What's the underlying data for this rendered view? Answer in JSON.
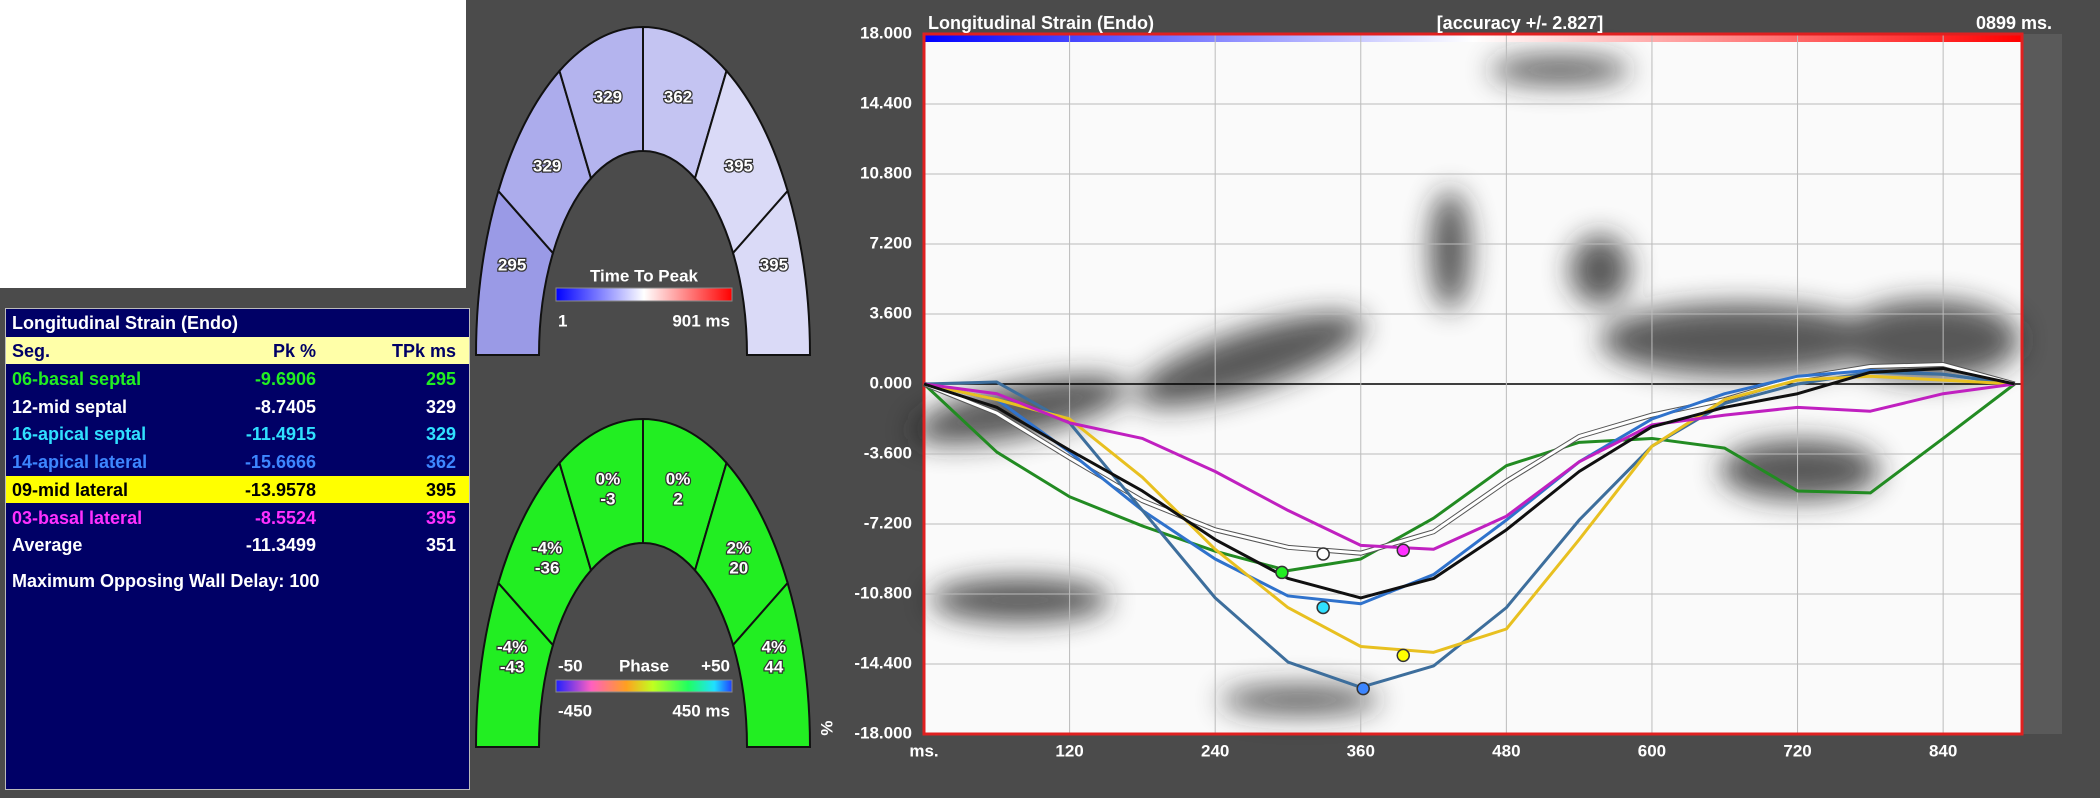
{
  "table": {
    "title": "Longitudinal Strain (Endo)",
    "headers": [
      "Seg.",
      "Pk %",
      "TPk ms"
    ],
    "rows": [
      {
        "seg": "06-basal septal",
        "pk": -9.6906,
        "tpk": 295,
        "color": "#22ee22"
      },
      {
        "seg": "12-mid septal",
        "pk": -8.7405,
        "tpk": 329,
        "color": "#ffffff"
      },
      {
        "seg": "16-apical septal",
        "pk": -11.4915,
        "tpk": 329,
        "color": "#30e0ff"
      },
      {
        "seg": "14-apical lateral",
        "pk": -15.6666,
        "tpk": 362,
        "color": "#3d86ff"
      },
      {
        "seg": "09-mid lateral",
        "pk": -13.9578,
        "tpk": 395,
        "color": "#ffff00"
      },
      {
        "seg": "03-basal lateral",
        "pk": -8.5524,
        "tpk": 395,
        "color": "#ff30ff"
      },
      {
        "seg": "Average",
        "pk": -11.3499,
        "tpk": 351,
        "color": "#ffffff"
      }
    ],
    "footer": "Maximum Opposing Wall Delay: 100"
  },
  "bullseye_ttp": {
    "segments": [
      {
        "label": 295,
        "color": "#9a9ae6"
      },
      {
        "label": 329,
        "color": "#acacec"
      },
      {
        "label": 329,
        "color": "#b4b4ee"
      },
      {
        "label": 362,
        "color": "#c4c4f2"
      },
      {
        "label": 395,
        "color": "#dadaf7"
      },
      {
        "label": 395,
        "color": "#dadaf7"
      }
    ],
    "colorbar": {
      "title": "Time To Peak",
      "min": "1",
      "max": "901 ms"
    }
  },
  "bullseye_phase": {
    "color": "#22ee22",
    "segments": [
      {
        "pct": "-4%",
        "ms": -43
      },
      {
        "pct": "-4%",
        "ms": -36
      },
      {
        "pct": "0%",
        "ms": -3
      },
      {
        "pct": "0%",
        "ms": 2
      },
      {
        "pct": "2%",
        "ms": 20
      },
      {
        "pct": "4%",
        "ms": 44
      }
    ],
    "colorbar": {
      "title": "Phase",
      "top_min": "-50",
      "top_max": "+50",
      "min": "-450",
      "max": "450 ms"
    }
  },
  "chart_data": {
    "type": "line",
    "title": "Longitudinal Strain (Endo)",
    "accuracy": "[accuracy +/- 2.827]",
    "time": "0899 ms.",
    "y_label": "%",
    "x": [
      0,
      60,
      120,
      180,
      240,
      300,
      360,
      420,
      480,
      540,
      600,
      660,
      720,
      780,
      840,
      899
    ],
    "series": [
      {
        "name": "06-basal septal",
        "color": "#228b22",
        "values": [
          0,
          -3.5,
          -5.8,
          -7.3,
          -8.6,
          -9.6,
          -9.0,
          -6.9,
          -4.2,
          -3.0,
          -2.8,
          -3.3,
          -5.5,
          -5.6,
          -2.8,
          0
        ]
      },
      {
        "name": "12-mid septal",
        "color": "#ffffff",
        "values": [
          0,
          -1.5,
          -3.8,
          -6.0,
          -7.5,
          -8.4,
          -8.7,
          -7.6,
          -5.0,
          -2.7,
          -1.6,
          -0.8,
          0.3,
          0.9,
          1.0,
          0
        ]
      },
      {
        "name": "16-apical septal",
        "color": "#2f72cc",
        "values": [
          0,
          -0.8,
          -3.5,
          -6.5,
          -9.0,
          -10.9,
          -11.3,
          -9.8,
          -7.0,
          -4.0,
          -1.8,
          -0.5,
          0.4,
          0.7,
          0.5,
          0
        ]
      },
      {
        "name": "14-apical lateral",
        "color": "#3d6e9c",
        "values": [
          0,
          0.1,
          -2.0,
          -6.5,
          -11.0,
          -14.3,
          -15.6,
          -14.5,
          -11.5,
          -7.0,
          -3.2,
          -1.0,
          0,
          0.6,
          0.5,
          0
        ]
      },
      {
        "name": "09-mid lateral",
        "color": "#e8c020",
        "values": [
          0,
          -0.8,
          -1.8,
          -4.8,
          -8.5,
          -11.5,
          -13.5,
          -13.8,
          -12.6,
          -8.0,
          -3.2,
          -0.8,
          0.2,
          0.4,
          0.2,
          0
        ]
      },
      {
        "name": "03-basal lateral",
        "color": "#c020c0",
        "values": [
          0,
          -0.5,
          -2.0,
          -2.8,
          -4.5,
          -6.5,
          -8.3,
          -8.5,
          -6.8,
          -4.0,
          -2.1,
          -1.6,
          -1.2,
          -1.4,
          -0.5,
          0
        ]
      },
      {
        "name": "Average",
        "color": "#101010",
        "values": [
          0,
          -1.2,
          -3.4,
          -5.5,
          -8.0,
          -10.0,
          -11.0,
          -10.0,
          -7.5,
          -4.5,
          -2.2,
          -1.2,
          -0.5,
          0.6,
          0.8,
          0
        ]
      }
    ],
    "xlim": [
      0,
      905
    ],
    "ylim": [
      -18,
      18
    ],
    "xticks": [
      {
        "value": 0,
        "label": "ms."
      },
      120,
      240,
      360,
      480,
      600,
      720,
      840
    ],
    "yticks": [
      {
        "value": 18,
        "label": "18.000"
      },
      {
        "value": 14.4,
        "label": "14.400"
      },
      {
        "value": 10.8,
        "label": "10.800"
      },
      {
        "value": 7.2,
        "label": "7.200"
      },
      {
        "value": 3.6,
        "label": "3.600"
      },
      {
        "value": 0,
        "label": "0.000"
      },
      {
        "value": -3.6,
        "label": "-3.600"
      },
      {
        "value": -7.2,
        "label": "-7.200"
      },
      {
        "value": -10.8,
        "label": "-10.800"
      },
      {
        "value": -14.4,
        "label": "-14.400"
      },
      {
        "value": -18,
        "label": "-18.000"
      }
    ],
    "grid": true
  }
}
